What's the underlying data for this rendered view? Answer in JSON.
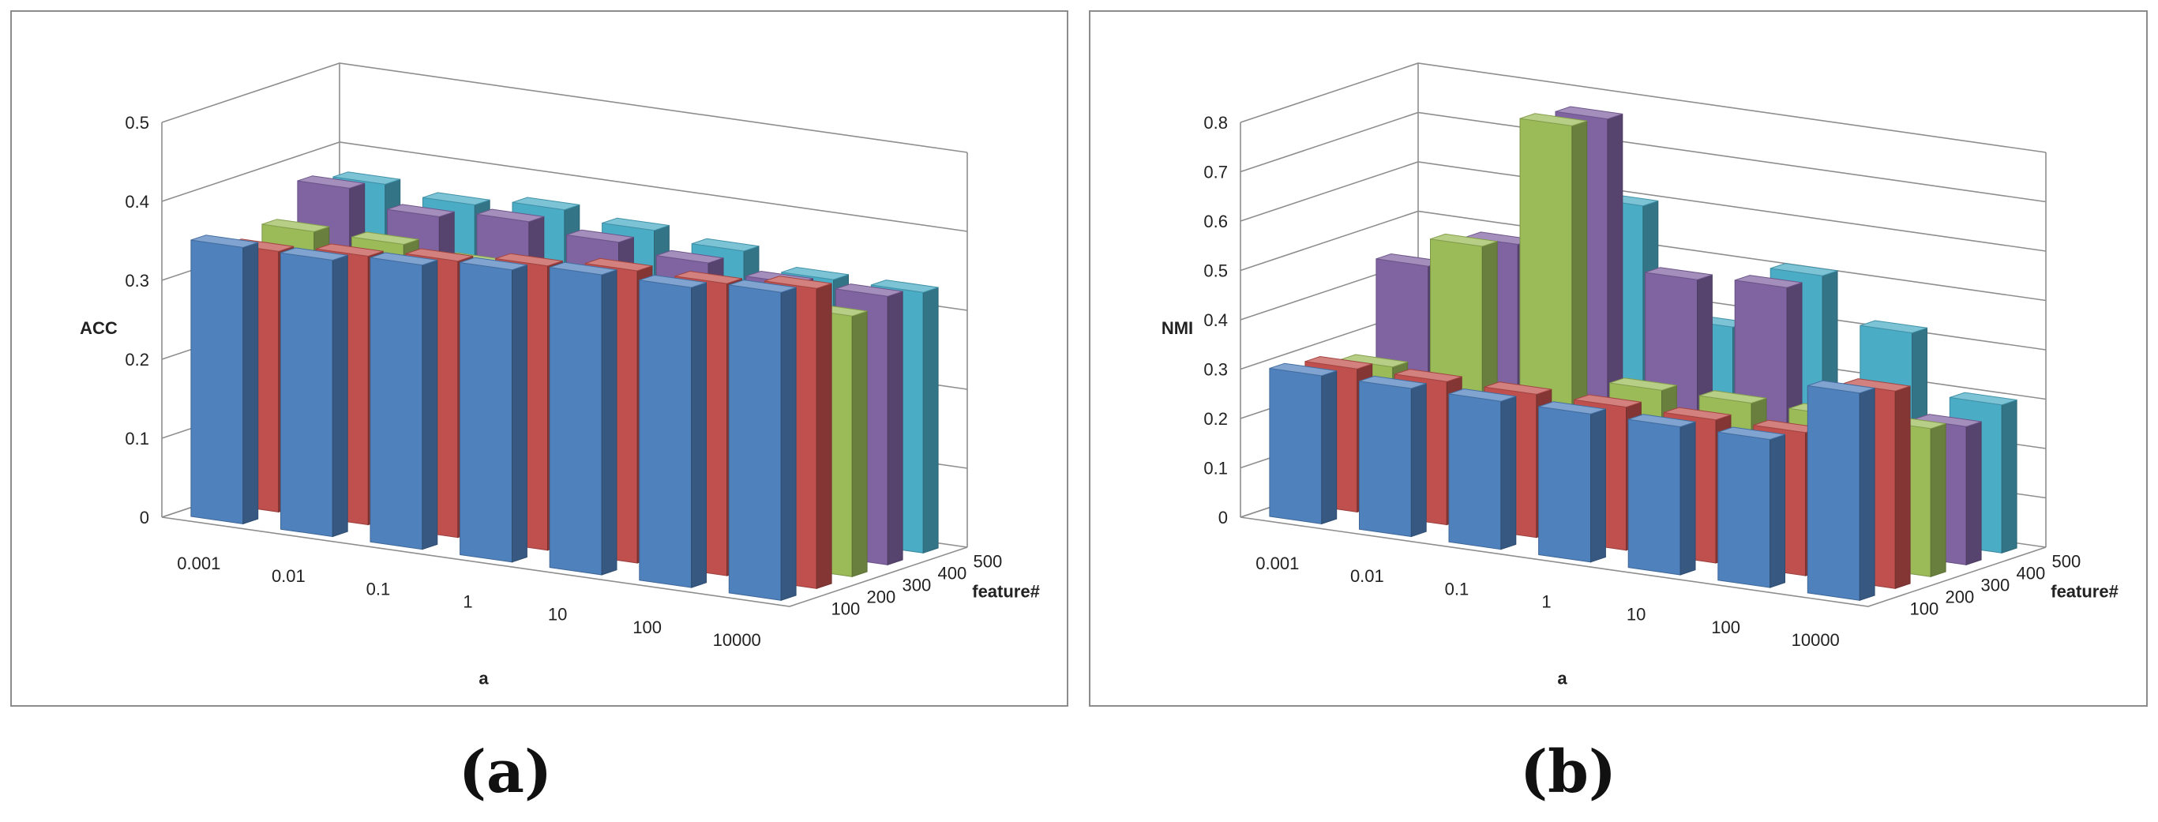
{
  "panels": [
    {
      "caption": "(a)"
    },
    {
      "caption": "(b)"
    }
  ],
  "chart_data": [
    {
      "type": "bar3d",
      "xlabel": "a",
      "ylabel": "ACC",
      "depth_label": "feature#",
      "categories": [
        "0.001",
        "0.01",
        "0.1",
        "1",
        "10",
        "100",
        "10000"
      ],
      "depth_categories": [
        "100",
        "200",
        "300",
        "400",
        "500"
      ],
      "yticks": [
        "0",
        "0.1",
        "0.2",
        "0.3",
        "0.4",
        "0.5"
      ],
      "ylim": [
        0,
        0.5
      ],
      "series": [
        {
          "depth": "100",
          "color": "#4f81bd",
          "values": [
            0.35,
            0.35,
            0.36,
            0.37,
            0.38,
            0.38,
            0.39
          ]
        },
        {
          "depth": "200",
          "color": "#c0504d",
          "values": [
            0.33,
            0.34,
            0.35,
            0.36,
            0.37,
            0.37,
            0.38
          ]
        },
        {
          "depth": "300",
          "color": "#9bbb59",
          "values": [
            0.34,
            0.34,
            0.33,
            0.33,
            0.33,
            0.33,
            0.33
          ]
        },
        {
          "depth": "400",
          "color": "#8064a2",
          "values": [
            0.38,
            0.36,
            0.37,
            0.36,
            0.35,
            0.34,
            0.34
          ]
        },
        {
          "depth": "500",
          "color": "#4bacc6",
          "values": [
            0.37,
            0.36,
            0.37,
            0.36,
            0.35,
            0.33,
            0.33
          ]
        }
      ]
    },
    {
      "type": "bar3d",
      "xlabel": "a",
      "ylabel": "NMI",
      "depth_label": "feature#",
      "categories": [
        "0.001",
        "0.01",
        "0.1",
        "1",
        "10",
        "100",
        "10000"
      ],
      "depth_categories": [
        "100",
        "200",
        "300",
        "400",
        "500"
      ],
      "yticks": [
        "0",
        "0.1",
        "0.2",
        "0.3",
        "0.4",
        "0.5",
        "0.6",
        "0.7",
        "0.8"
      ],
      "ylim": [
        0,
        0.8
      ],
      "series": [
        {
          "depth": "100",
          "color": "#4f81bd",
          "values": [
            0.3,
            0.3,
            0.3,
            0.3,
            0.3,
            0.3,
            0.42
          ]
        },
        {
          "depth": "200",
          "color": "#c0504d",
          "values": [
            0.29,
            0.29,
            0.29,
            0.29,
            0.29,
            0.29,
            0.4
          ]
        },
        {
          "depth": "300",
          "color": "#9bbb59",
          "values": [
            0.27,
            0.54,
            0.81,
            0.3,
            0.3,
            0.3,
            0.3
          ]
        },
        {
          "depth": "400",
          "color": "#8064a2",
          "values": [
            0.45,
            0.52,
            0.8,
            0.5,
            0.51,
            0.29,
            0.28
          ]
        },
        {
          "depth": "500",
          "color": "#4bacc6",
          "values": [
            0.31,
            0.32,
            0.6,
            0.38,
            0.51,
            0.42,
            0.3
          ]
        }
      ]
    }
  ]
}
